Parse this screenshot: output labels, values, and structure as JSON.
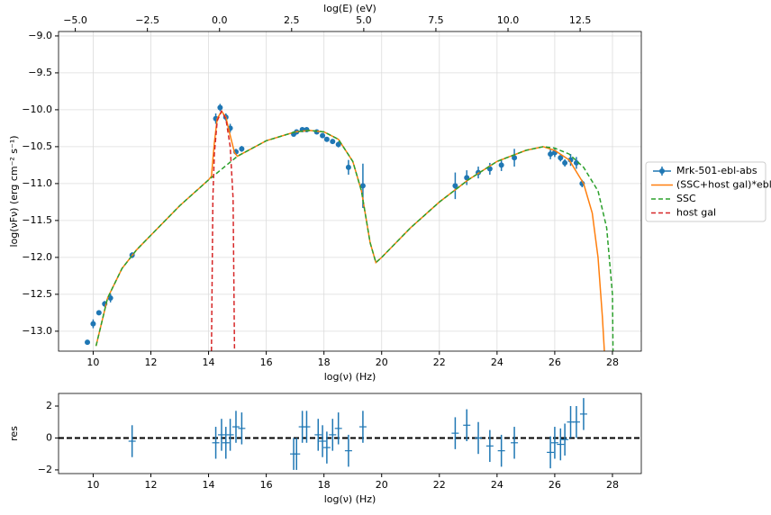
{
  "chart_data": [
    {
      "type": "errorbar",
      "x_label": "log(ν)  (Hz)",
      "y_label": "log(νFν)  (erg cm⁻²  s⁻¹)",
      "x2_label": "log(E) (eV)",
      "xlim": [
        8.8,
        29.0
      ],
      "ylim": [
        -13.27,
        -8.94
      ],
      "x2lim": [
        -5.58,
        14.62
      ],
      "xticks": [
        10,
        12,
        14,
        16,
        18,
        20,
        22,
        24,
        26,
        28
      ],
      "yticks": [
        {
          "value": -13.0,
          "label": "−13.0"
        },
        {
          "value": -12.5,
          "label": "−12.5"
        },
        {
          "value": -12.0,
          "label": "−12.0"
        },
        {
          "value": -11.5,
          "label": "−11.5"
        },
        {
          "value": -11.0,
          "label": "−11.0"
        },
        {
          "value": -10.5,
          "label": "−10.5"
        },
        {
          "value": -10.0,
          "label": "−10.0"
        },
        {
          "value": -9.5,
          "label": "−9.5"
        },
        {
          "value": -9.0,
          "label": "−9.0"
        }
      ],
      "x2ticks": [
        {
          "value": -5.0,
          "label": "−5.0"
        },
        {
          "value": -2.5,
          "label": "−2.5"
        },
        {
          "value": 0.0,
          "label": "0.0"
        },
        2.5,
        {
          "value": 5.0,
          "label": "5.0"
        },
        7.5,
        {
          "value": 10.0,
          "label": "10.0"
        },
        12.5
      ],
      "grid": true,
      "legend": "outside right",
      "series": [
        {
          "name": "Mrk-501-ebl-abs",
          "color": "#1f77b4",
          "x": [
            9.8,
            10.0,
            10.2,
            10.4,
            10.6,
            11.35,
            14.25,
            14.4,
            14.6,
            14.75,
            14.95,
            15.15,
            16.95,
            17.05,
            17.25,
            17.4,
            17.75,
            17.95,
            18.1,
            18.3,
            18.5,
            18.85,
            19.35,
            22.55,
            22.95,
            23.35,
            23.75,
            24.15,
            24.6,
            25.85,
            26.0,
            26.2,
            26.35,
            26.55,
            26.75,
            26.95
          ],
          "values": [
            -13.15,
            -12.9,
            -12.75,
            -12.63,
            -12.55,
            -11.97,
            -10.12,
            -9.97,
            -10.1,
            -10.25,
            -10.57,
            -10.53,
            -10.33,
            -10.3,
            -10.27,
            -10.27,
            -10.3,
            -10.35,
            -10.4,
            -10.43,
            -10.47,
            -10.78,
            -11.03,
            -11.03,
            -10.92,
            -10.85,
            -10.8,
            -10.75,
            -10.65,
            -10.6,
            -10.58,
            -10.65,
            -10.72,
            -10.68,
            -10.72,
            -11.0
          ],
          "errors": [
            0.03,
            0.06,
            0.03,
            0.04,
            0.06,
            0.04,
            0.07,
            0.05,
            0.05,
            0.06,
            0.04,
            0.04,
            0.03,
            0.03,
            0.03,
            0.03,
            0.03,
            0.03,
            0.03,
            0.03,
            0.04,
            0.1,
            0.3,
            0.18,
            0.1,
            0.08,
            0.08,
            0.08,
            0.12,
            0.07,
            0.06,
            0.05,
            0.05,
            0.08,
            0.08,
            0.05
          ]
        },
        {
          "name": "(SSC+host gal)*ebl",
          "color": "#ff7f0e",
          "dash": false,
          "x": [
            10.1,
            10.5,
            11,
            11.5,
            12,
            13,
            14,
            14.1,
            14.2,
            14.3,
            14.45,
            14.6,
            14.75,
            14.9,
            15,
            16,
            17,
            17.5,
            18,
            18.5,
            19,
            19.3,
            19.6,
            19.8,
            20,
            21,
            22,
            23,
            24,
            25,
            25.6,
            26,
            26.5,
            27,
            27.3,
            27.5,
            27.65,
            27.72
          ],
          "values": [
            -13.2,
            -12.55,
            -12.15,
            -11.9,
            -11.7,
            -11.3,
            -10.95,
            -10.9,
            -10.45,
            -10.12,
            -10.02,
            -10.1,
            -10.35,
            -10.58,
            -10.63,
            -10.42,
            -10.3,
            -10.28,
            -10.3,
            -10.4,
            -10.7,
            -11.1,
            -11.8,
            -12.07,
            -12.0,
            -11.6,
            -11.25,
            -10.95,
            -10.7,
            -10.55,
            -10.5,
            -10.55,
            -10.68,
            -11.0,
            -11.4,
            -12.0,
            -12.8,
            -13.27
          ]
        },
        {
          "name": "SSC",
          "color": "#2ca02c",
          "dash": true,
          "x": [
            10.1,
            10.5,
            11,
            11.5,
            12,
            13,
            14,
            15,
            16,
            17,
            17.5,
            18,
            18.5,
            19,
            19.3,
            19.6,
            19.8,
            20,
            21,
            22,
            23,
            24,
            25,
            25.6,
            26,
            26.5,
            27,
            27.5,
            27.8,
            28,
            28.02
          ],
          "values": [
            -13.2,
            -12.55,
            -12.15,
            -11.9,
            -11.7,
            -11.3,
            -10.95,
            -10.63,
            -10.42,
            -10.3,
            -10.28,
            -10.3,
            -10.4,
            -10.7,
            -11.1,
            -11.8,
            -12.07,
            -12.0,
            -11.6,
            -11.25,
            -10.95,
            -10.7,
            -10.55,
            -10.5,
            -10.52,
            -10.6,
            -10.78,
            -11.1,
            -11.6,
            -12.5,
            -13.27
          ]
        },
        {
          "name": "host gal",
          "color": "#d62728",
          "dash": true,
          "x": [
            14.1,
            14.15,
            14.2,
            14.3,
            14.45,
            14.6,
            14.75,
            14.85,
            14.9
          ],
          "values": [
            -13.27,
            -11.2,
            -10.6,
            -10.15,
            -10.02,
            -10.12,
            -10.5,
            -11.2,
            -13.27
          ]
        }
      ]
    },
    {
      "type": "errorbar",
      "x_label": "log(ν)  (Hz)",
      "y_label": "res",
      "xlim": [
        8.8,
        29.0
      ],
      "ylim": [
        -2.23,
        2.79
      ],
      "xticks": [
        10,
        12,
        14,
        16,
        18,
        20,
        22,
        24,
        26,
        28
      ],
      "yticks": [
        {
          "value": -2,
          "label": "−2"
        },
        0,
        2
      ],
      "grid": false,
      "reference_line": 0,
      "series": [
        {
          "color": "#1f77b4",
          "x": [
            11.35,
            14.25,
            14.45,
            14.6,
            14.75,
            14.95,
            15.15,
            16.95,
            17.05,
            17.25,
            17.4,
            17.8,
            17.95,
            18.1,
            18.3,
            18.5,
            18.85,
            19.35,
            22.55,
            22.95,
            23.35,
            23.75,
            24.15,
            24.6,
            25.85,
            26.0,
            26.2,
            26.35,
            26.55,
            26.75,
            27.0
          ],
          "values": [
            -0.2,
            -0.3,
            0.2,
            -0.3,
            0.2,
            0.7,
            0.6,
            -1.0,
            -1.0,
            0.7,
            0.7,
            0.2,
            -0.2,
            -0.6,
            0.2,
            0.6,
            -0.8,
            0.7,
            0.3,
            0.8,
            0.0,
            -0.5,
            -0.8,
            -0.3,
            -0.9,
            -0.3,
            -0.4,
            -0.1,
            1.0,
            1.0,
            1.5
          ],
          "errors": [
            1,
            1,
            1,
            1,
            1,
            1,
            1,
            1,
            1,
            1,
            1,
            1,
            1,
            1,
            1,
            1,
            1,
            1,
            1,
            1,
            1,
            1,
            1,
            1,
            1,
            1,
            1,
            1,
            1,
            1,
            1
          ]
        }
      ]
    }
  ]
}
